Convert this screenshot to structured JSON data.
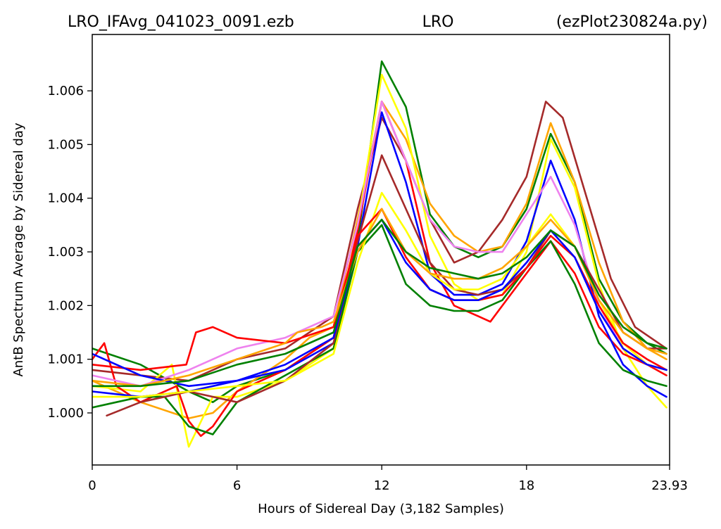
{
  "chart_data": {
    "type": "line",
    "title_left": "LRO_IFAvg_041023_0091.ezb",
    "title_center": "LRO",
    "title_right": "(ezPlot230824a.py)",
    "xlabel": "Hours of Sidereal Day  (3,182 Samples)",
    "ylabel": "AntB Spectrum Average by Sidereal day",
    "xlim": [
      0,
      23.93
    ],
    "ylim": [
      0.99903,
      1.00705
    ],
    "x_ticks": [
      0,
      6,
      12,
      18,
      23.93
    ],
    "x_tick_labels": [
      "0",
      "6",
      "12",
      "18",
      "23.93"
    ],
    "y_ticks": [
      1.0,
      1.001,
      1.002,
      1.003,
      1.004,
      1.005,
      1.006
    ],
    "y_tick_labels": [
      "1.000",
      "1.001",
      "1.002",
      "1.003",
      "1.004",
      "1.005",
      "1.006"
    ],
    "grid": false,
    "legend": "none",
    "series": [
      {
        "color": "#008000",
        "x": [
          0,
          2,
          4,
          5,
          6,
          8,
          10,
          11,
          12,
          13,
          14,
          15,
          16,
          17,
          18,
          19,
          20,
          21,
          22,
          23,
          23.8
        ],
        "y": [
          1.0012,
          1.0009,
          1.0004,
          1.0002,
          1.0005,
          1.0008,
          1.0014,
          1.0032,
          1.00655,
          1.0057,
          1.0037,
          1.0031,
          1.0029,
          1.0031,
          1.0038,
          1.0052,
          1.0043,
          1.0025,
          1.0017,
          1.0013,
          1.0011
        ]
      },
      {
        "color": "#ffa500",
        "x": [
          0,
          2,
          4,
          5,
          6,
          8,
          9,
          10,
          11,
          12,
          13,
          14,
          15,
          16,
          17,
          18,
          19,
          20,
          21,
          22,
          23,
          23.8
        ],
        "y": [
          1.0006,
          1.0002,
          0.9999,
          1.0,
          1.0004,
          1.001,
          1.0014,
          1.0016,
          1.0036,
          1.0058,
          1.0051,
          1.0039,
          1.0033,
          1.003,
          1.0031,
          1.0039,
          1.0054,
          1.0043,
          1.0028,
          1.0017,
          1.0012,
          1.001
        ]
      },
      {
        "color": "#a52a2a",
        "x": [
          0,
          2,
          4,
          6,
          8,
          10,
          11,
          12,
          13,
          14,
          15,
          16,
          17,
          18,
          18.8,
          19.5,
          20.5,
          21.5,
          22.5,
          23.8
        ],
        "y": [
          1.0008,
          1.0007,
          1.0006,
          1.001,
          1.0012,
          1.0018,
          1.0038,
          1.0055,
          1.0047,
          1.0036,
          1.0028,
          1.003,
          1.0036,
          1.0044,
          1.0058,
          1.0055,
          1.004,
          1.0025,
          1.0016,
          1.0012
        ]
      },
      {
        "color": "#ffff00",
        "x": [
          0,
          2,
          3.3,
          4,
          5,
          6,
          8,
          10,
          11,
          12,
          13,
          14,
          15,
          16,
          17,
          18,
          19,
          20,
          21,
          22,
          23,
          23.8
        ],
        "y": [
          1.0005,
          1.0004,
          1.0009,
          0.99937,
          1.0003,
          1.0003,
          1.0006,
          1.0012,
          1.0035,
          1.0063,
          1.0053,
          1.0033,
          1.0024,
          1.0021,
          1.0022,
          1.003,
          1.0051,
          1.0042,
          1.0024,
          1.0012,
          1.0005,
          1.0001
        ]
      },
      {
        "color": "#ff0000",
        "x": [
          0,
          0.5,
          1,
          2,
          3.5,
          4,
          4.5,
          5,
          6,
          8,
          10,
          11,
          12,
          13,
          14,
          15,
          16,
          16.5,
          17,
          18,
          19,
          20,
          21,
          22,
          23,
          23.8
        ],
        "y": [
          1.001,
          1.0013,
          1.0005,
          1.0002,
          1.0005,
          0.99985,
          0.99957,
          0.99975,
          1.0004,
          1.0008,
          1.0014,
          1.0034,
          1.0058,
          1.0047,
          1.0028,
          1.002,
          1.0018,
          1.0017,
          1.002,
          1.0026,
          1.0032,
          1.0026,
          1.0016,
          1.0011,
          1.0009,
          1.0007
        ]
      },
      {
        "color": "#0000ff",
        "x": [
          0,
          2,
          4,
          6,
          8,
          10,
          11,
          12,
          13,
          14,
          15,
          16,
          17,
          18,
          19,
          20,
          21,
          22,
          23,
          23.8
        ],
        "y": [
          1.0004,
          1.0003,
          1.0004,
          1.0006,
          1.0008,
          1.0013,
          1.0031,
          1.0056,
          1.0043,
          1.0026,
          1.0022,
          1.0022,
          1.0024,
          1.0032,
          1.0047,
          1.0036,
          1.0018,
          1.0009,
          1.0005,
          1.0003
        ]
      },
      {
        "color": "#ee82ee",
        "x": [
          0,
          2,
          4,
          6,
          8,
          10,
          11,
          12,
          13,
          14,
          15,
          16,
          17,
          18,
          19,
          20,
          21,
          22,
          23,
          23.8
        ],
        "y": [
          1.0007,
          1.0005,
          1.0008,
          1.0012,
          1.0014,
          1.0018,
          1.0035,
          1.0058,
          1.0047,
          1.0036,
          1.0031,
          1.003,
          1.003,
          1.0037,
          1.0044,
          1.0035,
          1.002,
          1.0012,
          1.0009,
          1.0008
        ]
      },
      {
        "color": "#008000",
        "x": [
          0,
          1,
          2,
          3,
          4,
          5,
          6,
          8,
          10,
          11,
          12,
          13,
          14,
          15,
          16,
          17,
          18,
          19,
          20,
          21,
          22,
          23,
          23.8
        ],
        "y": [
          1.0001,
          1.0002,
          1.0003,
          1.0003,
          0.99975,
          0.9996,
          1.0002,
          1.0007,
          1.0012,
          1.003,
          1.0035,
          1.0024,
          1.002,
          1.0019,
          1.0019,
          1.0021,
          1.0027,
          1.0032,
          1.0024,
          1.0013,
          1.0008,
          1.0006,
          1.0005
        ]
      },
      {
        "color": "#a52a2a",
        "x": [
          0.6,
          2,
          4,
          6,
          8,
          10,
          11,
          12,
          13,
          14,
          15,
          16,
          17,
          18,
          19,
          20,
          21,
          22,
          23,
          23.8
        ],
        "y": [
          0.99995,
          1.0002,
          1.0004,
          1.0002,
          1.0006,
          1.0013,
          1.0032,
          1.0048,
          1.0038,
          1.0028,
          1.0023,
          1.0022,
          1.0023,
          1.0027,
          1.0034,
          1.0031,
          1.0023,
          1.0015,
          1.0012,
          1.0012
        ]
      },
      {
        "color": "#ffff00",
        "x": [
          0,
          2,
          4,
          6,
          8,
          10,
          11,
          12,
          13,
          14,
          15,
          16,
          17,
          18,
          19,
          20,
          21,
          22,
          23,
          23.8
        ],
        "y": [
          1.0003,
          1.0003,
          1.0004,
          1.0005,
          1.0006,
          1.0011,
          1.0028,
          1.0041,
          1.0034,
          1.0026,
          1.0023,
          1.0023,
          1.0025,
          1.0031,
          1.0037,
          1.0031,
          1.0021,
          1.0013,
          1.0009,
          1.0008
        ]
      },
      {
        "color": "#ff0000",
        "x": [
          0,
          2,
          3.9,
          4.3,
          5,
          6,
          8,
          10,
          11,
          12,
          13,
          14,
          15,
          16,
          17,
          18,
          19,
          20,
          21,
          22,
          23,
          23.8
        ],
        "y": [
          1.0009,
          1.0008,
          1.0009,
          1.0015,
          1.0016,
          1.0014,
          1.0013,
          1.0016,
          1.0033,
          1.0038,
          1.0029,
          1.0023,
          1.0021,
          1.0021,
          1.0022,
          1.0027,
          1.0033,
          1.0029,
          1.002,
          1.0013,
          1.001,
          1.0008
        ]
      },
      {
        "color": "#0000ff",
        "x": [
          0,
          2,
          4,
          6,
          8,
          10,
          11,
          12,
          13,
          14,
          15,
          16,
          17,
          18,
          19,
          20,
          21,
          22,
          23,
          23.8
        ],
        "y": [
          1.0011,
          1.0007,
          1.0005,
          1.0006,
          1.0009,
          1.0014,
          1.0031,
          1.0036,
          1.0028,
          1.0023,
          1.0021,
          1.0021,
          1.0023,
          1.0028,
          1.0034,
          1.0029,
          1.0019,
          1.0012,
          1.0009,
          1.0008
        ]
      },
      {
        "color": "#ffa500",
        "x": [
          0,
          2,
          4,
          6,
          8,
          8.5,
          9.5,
          10,
          11,
          12,
          13,
          14,
          15,
          16,
          17,
          18,
          19,
          20,
          21,
          22,
          23,
          23.8
        ],
        "y": [
          1.0006,
          1.0005,
          1.0007,
          1.001,
          1.0013,
          1.0015,
          1.0016,
          1.0017,
          1.003,
          1.0038,
          1.003,
          1.0026,
          1.0025,
          1.0025,
          1.0027,
          1.0031,
          1.0036,
          1.0031,
          1.0021,
          1.0015,
          1.0012,
          1.0011
        ]
      },
      {
        "color": "#008000",
        "x": [
          0,
          2,
          4,
          6,
          8,
          10,
          11,
          12,
          13,
          14,
          15,
          16,
          17,
          18,
          19,
          20,
          21,
          22,
          23,
          23.8
        ],
        "y": [
          1.0005,
          1.0005,
          1.0006,
          1.0009,
          1.0011,
          1.0015,
          1.0031,
          1.0036,
          1.003,
          1.0027,
          1.0026,
          1.0025,
          1.0026,
          1.0029,
          1.0034,
          1.0031,
          1.0022,
          1.0016,
          1.0013,
          1.0012
        ]
      }
    ]
  }
}
